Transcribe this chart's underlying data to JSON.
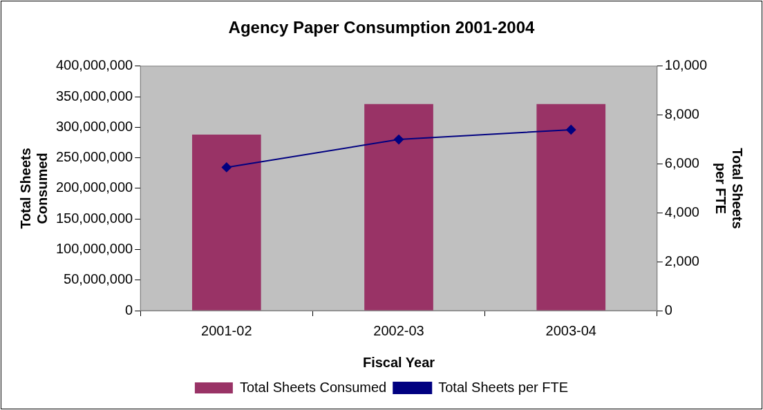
{
  "chart_data": {
    "type": "bar",
    "title": "Agency Paper Consumption 2001-2004",
    "xlabel": "Fiscal Year",
    "ylabel": "Total Sheets Consumed",
    "y2label": "Total Sheets per FTE",
    "categories": [
      "2001-02",
      "2002-03",
      "2003-04"
    ],
    "series": [
      {
        "name": "Total Sheets Consumed",
        "color": "#993366",
        "values": [
          288000000,
          338000000,
          338000000
        ]
      },
      {
        "name": "Total Sheets per FTE",
        "type": "line",
        "axis": "y2",
        "color": "#000080",
        "values": [
          5860,
          7000,
          7400
        ]
      }
    ],
    "ylim": [
      0,
      400000000
    ],
    "yticks": [
      {
        "value": 0,
        "label": "0"
      },
      {
        "value": 50000000,
        "label": "50,000,000"
      },
      {
        "value": 100000000,
        "label": "100,000,000"
      },
      {
        "value": 150000000,
        "label": "150,000,000"
      },
      {
        "value": 200000000,
        "label": "200,000,000"
      },
      {
        "value": 250000000,
        "label": "250,000,000"
      },
      {
        "value": 300000000,
        "label": "300,000,000"
      },
      {
        "value": 350000000,
        "label": "350,000,000"
      },
      {
        "value": 400000000,
        "label": "400,000,000"
      }
    ],
    "y2lim": [
      0,
      10000
    ],
    "y2ticks": [
      {
        "value": 0,
        "label": "0"
      },
      {
        "value": 2000,
        "label": "2,000"
      },
      {
        "value": 4000,
        "label": "4,000"
      },
      {
        "value": 6000,
        "label": "6,000"
      },
      {
        "value": 8000,
        "label": "8,000"
      },
      {
        "value": 10000,
        "label": "10,000"
      }
    ],
    "grid": false,
    "legend": "bottom",
    "marker": "diamond",
    "line_style": "solid"
  }
}
